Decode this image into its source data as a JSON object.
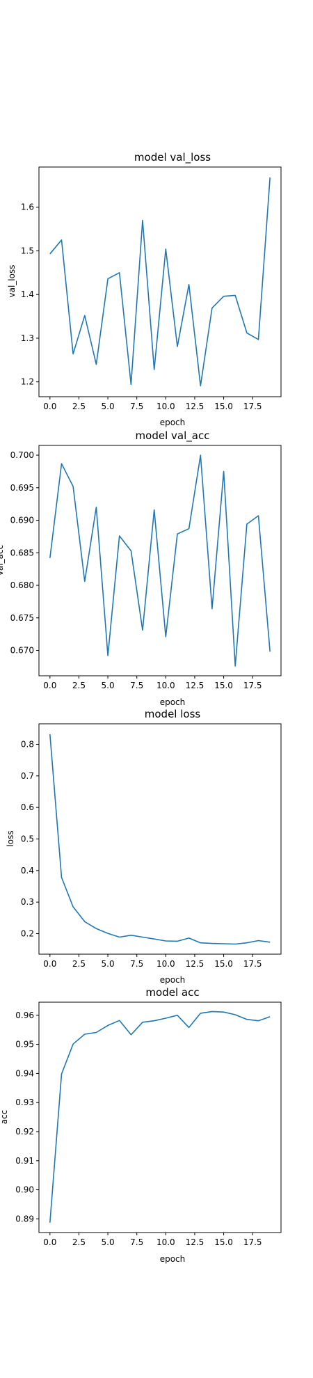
{
  "series_color": "#1f77b4",
  "chart_data": [
    {
      "type": "line",
      "title": "model val_loss",
      "xlabel": "epoch",
      "ylabel": "val_loss",
      "grid": false,
      "x": [
        0,
        1,
        2,
        3,
        4,
        5,
        6,
        7,
        8,
        9,
        10,
        11,
        12,
        13,
        14,
        15,
        16,
        17,
        18,
        19
      ],
      "xlim": [
        -0.95,
        19.95
      ],
      "ylim": [
        1.166,
        1.692
      ],
      "xticks": [
        0.0,
        2.5,
        5.0,
        7.5,
        10.0,
        12.5,
        15.0,
        17.5
      ],
      "xtick_labels": [
        "0.0",
        "2.5",
        "5.0",
        "7.5",
        "10.0",
        "12.5",
        "15.0",
        "17.5"
      ],
      "yticks": [
        1.2,
        1.3,
        1.4,
        1.5,
        1.6
      ],
      "ytick_labels": [
        "1.2",
        "1.3",
        "1.4",
        "1.5",
        "1.6"
      ],
      "values": [
        1.493,
        1.525,
        1.264,
        1.352,
        1.24,
        1.436,
        1.45,
        1.194,
        1.57,
        1.228,
        1.504,
        1.281,
        1.423,
        1.191,
        1.369,
        1.396,
        1.398,
        1.312,
        1.297,
        1.668
      ]
    },
    {
      "type": "line",
      "title": "model val_acc",
      "xlabel": "epoch",
      "ylabel": "val_acc",
      "grid": false,
      "x": [
        0,
        1,
        2,
        3,
        4,
        5,
        6,
        7,
        8,
        9,
        10,
        11,
        12,
        13,
        14,
        15,
        16,
        17,
        18,
        19
      ],
      "xlim": [
        -0.95,
        19.95
      ],
      "ylim": [
        0.6661,
        0.7015
      ],
      "xticks": [
        0.0,
        2.5,
        5.0,
        7.5,
        10.0,
        12.5,
        15.0,
        17.5
      ],
      "xtick_labels": [
        "0.0",
        "2.5",
        "5.0",
        "7.5",
        "10.0",
        "12.5",
        "15.0",
        "17.5"
      ],
      "yticks": [
        0.67,
        0.675,
        0.68,
        0.685,
        0.69,
        0.695,
        0.7
      ],
      "ytick_labels": [
        "0.670",
        "0.675",
        "0.680",
        "0.685",
        "0.690",
        "0.695",
        "0.700"
      ],
      "values": [
        0.6842,
        0.6987,
        0.6952,
        0.6806,
        0.692,
        0.6692,
        0.6876,
        0.6853,
        0.6731,
        0.6916,
        0.6721,
        0.6879,
        0.6887,
        0.7,
        0.6764,
        0.6975,
        0.6676,
        0.6894,
        0.6907,
        0.6698
      ]
    },
    {
      "type": "line",
      "title": "model loss",
      "xlabel": "epoch",
      "ylabel": "loss",
      "grid": false,
      "x": [
        0,
        1,
        2,
        3,
        4,
        5,
        6,
        7,
        8,
        9,
        10,
        11,
        12,
        13,
        14,
        15,
        16,
        17,
        18,
        19
      ],
      "xlim": [
        -0.95,
        19.95
      ],
      "ylim": [
        0.135,
        0.865
      ],
      "xticks": [
        0.0,
        2.5,
        5.0,
        7.5,
        10.0,
        12.5,
        15.0,
        17.5
      ],
      "xtick_labels": [
        "0.0",
        "2.5",
        "5.0",
        "7.5",
        "10.0",
        "12.5",
        "15.0",
        "17.5"
      ],
      "yticks": [
        0.2,
        0.3,
        0.4,
        0.5,
        0.6,
        0.7,
        0.8
      ],
      "ytick_labels": [
        "0.2",
        "0.3",
        "0.4",
        "0.5",
        "0.6",
        "0.7",
        "0.8"
      ],
      "values": [
        0.832,
        0.378,
        0.285,
        0.238,
        0.216,
        0.201,
        0.189,
        0.195,
        0.189,
        0.183,
        0.177,
        0.176,
        0.186,
        0.171,
        0.169,
        0.168,
        0.167,
        0.171,
        0.178,
        0.173
      ]
    },
    {
      "type": "line",
      "title": "model acc",
      "xlabel": "epoch",
      "ylabel": "acc",
      "grid": false,
      "x": [
        0,
        1,
        2,
        3,
        4,
        5,
        6,
        7,
        8,
        9,
        10,
        11,
        12,
        13,
        14,
        15,
        16,
        17,
        18,
        19
      ],
      "xlim": [
        -0.95,
        19.95
      ],
      "ylim": [
        0.8853,
        0.9645
      ],
      "xticks": [
        0.0,
        2.5,
        5.0,
        7.5,
        10.0,
        12.5,
        15.0,
        17.5
      ],
      "xtick_labels": [
        "0.0",
        "2.5",
        "5.0",
        "7.5",
        "10.0",
        "12.5",
        "15.0",
        "17.5"
      ],
      "yticks": [
        0.89,
        0.9,
        0.91,
        0.92,
        0.93,
        0.94,
        0.95,
        0.96
      ],
      "ytick_labels": [
        "0.89",
        "0.90",
        "0.91",
        "0.92",
        "0.93",
        "0.94",
        "0.95",
        "0.96"
      ],
      "values": [
        0.8887,
        0.9398,
        0.9501,
        0.9535,
        0.9541,
        0.9565,
        0.9582,
        0.9533,
        0.9576,
        0.9581,
        0.959,
        0.96,
        0.9558,
        0.9607,
        0.9613,
        0.9611,
        0.9602,
        0.9586,
        0.9581,
        0.9595
      ]
    }
  ]
}
